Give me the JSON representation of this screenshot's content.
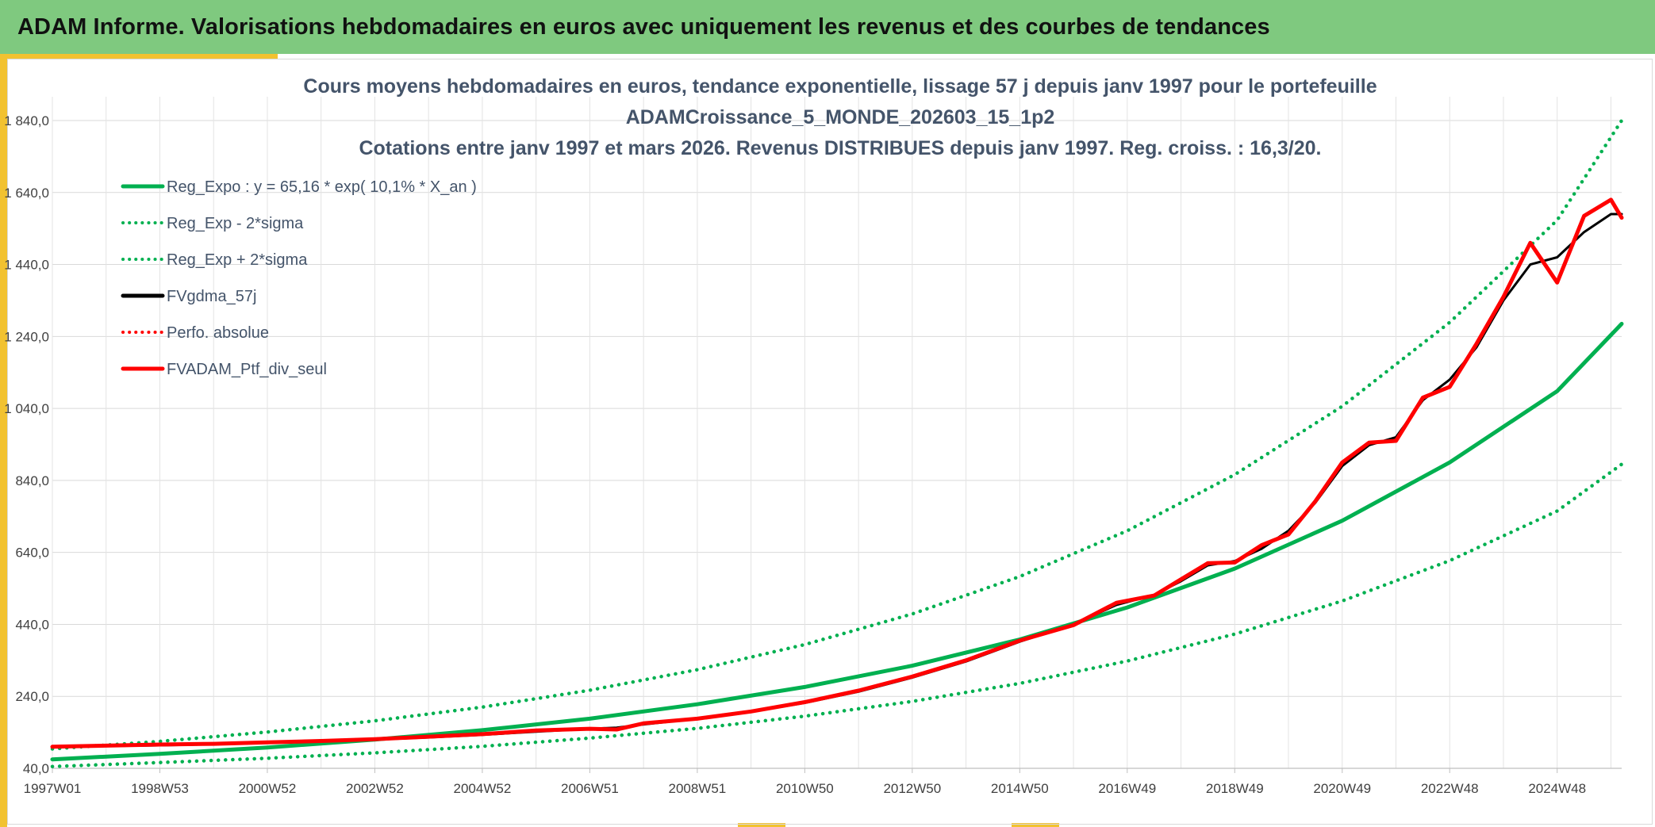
{
  "header": {
    "title": "ADAM Informe. Valorisations hebdomadaires en euros avec uniquement les revenus et des courbes de tendances"
  },
  "colors": {
    "header_bg": "#7fc97f",
    "accent": "#f2c230",
    "trend_green": "#00b050",
    "portfolio_red": "#ff0000",
    "smooth_black": "#000000"
  },
  "chart_data": {
    "type": "line",
    "title_lines": [
      "Cours moyens hebdomadaires en euros, tendance exponentielle, lissage 57 j depuis janv 1997 pour le portefeuille",
      "ADAMCroissance_5_MONDE_202603_15_1p2",
      "Cotations entre janv 1997 et mars 2026. Revenus DISTRIBUES depuis janv 1997. Reg. croiss. : 16,3/20."
    ],
    "x_range": [
      "1997W01",
      "2026W12"
    ],
    "ylim": [
      40,
      1840
    ],
    "y_ticks": [
      "40,0",
      "240,0",
      "440,0",
      "640,0",
      "840,0",
      "1 040,0",
      "1 240,0",
      "1 440,0",
      "1 640,0",
      "1 840,0"
    ],
    "x_ticks": [
      "1997W01",
      "1998W53",
      "2000W52",
      "2002W52",
      "2004W52",
      "2006W51",
      "2008W51",
      "2010W50",
      "2012W50",
      "2014W50",
      "2016W49",
      "2018W49",
      "2020W49",
      "2022W48",
      "2024W48"
    ],
    "grid": true,
    "legend_position": "top-left",
    "legend": [
      {
        "label": "Reg_Expo : y = 65,16 * exp( 10,1% *  X_an )",
        "color": "#00b050",
        "style": "solid"
      },
      {
        "label": "Reg_Exp - 2*sigma",
        "color": "#00b050",
        "style": "dotted"
      },
      {
        "label": "Reg_Exp + 2*sigma",
        "color": "#00b050",
        "style": "dotted"
      },
      {
        "label": "FVgdma_57j",
        "color": "#000000",
        "style": "solid"
      },
      {
        "label": "Perfo. absolue",
        "color": "#ff0000",
        "style": "dotted"
      },
      {
        "label": "FVADAM_Ptf_div_seul",
        "color": "#ff0000",
        "style": "solid"
      }
    ],
    "series": [
      {
        "name": "Reg_Expo : y = 65,16 * exp( 10,1% *  X_an )",
        "x": [
          1997.0,
          1999.0,
          2001.0,
          2003.0,
          2005.0,
          2007.0,
          2009.0,
          2011.0,
          2013.0,
          2015.0,
          2017.0,
          2019.0,
          2021.0,
          2023.0,
          2025.0,
          2026.2
        ],
        "y": [
          65,
          80,
          98,
          120,
          146,
          178,
          218,
          266,
          325,
          398,
          487,
          595,
          728,
          890,
          1088,
          1275
        ]
      },
      {
        "name": "Reg_Exp - 2*sigma",
        "x": [
          1997.0,
          1999.0,
          2001.0,
          2003.0,
          2005.0,
          2007.0,
          2009.0,
          2011.0,
          2013.0,
          2015.0,
          2017.0,
          2019.0,
          2021.0,
          2023.0,
          2025.0,
          2026.2
        ],
        "y": [
          45,
          56,
          68,
          83,
          101,
          124,
          151,
          185,
          226,
          276,
          338,
          413,
          505,
          617,
          755,
          885
        ]
      },
      {
        "name": "Reg_Exp + 2*sigma",
        "x": [
          1997.0,
          1999.0,
          2001.0,
          2003.0,
          2005.0,
          2007.0,
          2009.0,
          2011.0,
          2013.0,
          2015.0,
          2017.0,
          2019.0,
          2021.0,
          2023.0,
          2025.0,
          2026.2
        ],
        "y": [
          94,
          115,
          141,
          172,
          210,
          257,
          314,
          384,
          469,
          573,
          700,
          856,
          1046,
          1279,
          1563,
          1840
        ]
      },
      {
        "name": "FVgdma_57j",
        "x": [
          1997.0,
          1998.0,
          1999.0,
          2000.0,
          2001.0,
          2002.0,
          2003.0,
          2004.0,
          2005.0,
          2006.0,
          2007.0,
          2007.5,
          2008.0,
          2009.0,
          2010.0,
          2011.0,
          2012.0,
          2013.0,
          2014.0,
          2015.0,
          2016.0,
          2016.8,
          2017.5,
          2018.0,
          2018.5,
          2019.0,
          2019.5,
          2020.0,
          2020.5,
          2021.0,
          2021.5,
          2022.0,
          2022.5,
          2023.0,
          2023.5,
          2024.0,
          2024.5,
          2025.0,
          2025.5,
          2026.0,
          2026.2
        ],
        "y": [
          100,
          102,
          104,
          107,
          111,
          116,
          120,
          126,
          133,
          142,
          150,
          153,
          162,
          178,
          197,
          222,
          253,
          292,
          337,
          392,
          440,
          494,
          522,
          560,
          604,
          616,
          650,
          700,
          778,
          880,
          938,
          960,
          1063,
          1120,
          1210,
          1340,
          1440,
          1460,
          1530,
          1580,
          1580
        ]
      },
      {
        "name": "FVADAM_Ptf_div_seul",
        "x": [
          1997.0,
          1998.0,
          1999.0,
          2000.0,
          2001.0,
          2002.0,
          2003.0,
          2004.0,
          2005.0,
          2006.0,
          2007.0,
          2007.5,
          2008.0,
          2009.0,
          2010.0,
          2011.0,
          2012.0,
          2013.0,
          2014.0,
          2015.0,
          2016.0,
          2016.8,
          2017.5,
          2018.0,
          2018.5,
          2019.0,
          2019.5,
          2020.0,
          2020.5,
          2021.0,
          2021.5,
          2022.0,
          2022.5,
          2023.0,
          2023.5,
          2024.0,
          2024.5,
          2025.0,
          2025.5,
          2026.0,
          2026.2
        ],
        "y": [
          100,
          103,
          106,
          108,
          112,
          116,
          121,
          128,
          135,
          145,
          150,
          148,
          165,
          178,
          198,
          224,
          256,
          295,
          340,
          395,
          438,
          500,
          520,
          565,
          610,
          612,
          660,
          690,
          782,
          890,
          945,
          950,
          1070,
          1100,
          1220,
          1350,
          1500,
          1390,
          1575,
          1620,
          1570
        ]
      },
      {
        "name": "Perfo. absolue",
        "x": [
          1997.0,
          1998.0,
          1999.0,
          2000.0,
          2001.0,
          2002.0,
          2003.0,
          2004.0,
          2005.0,
          2006.0,
          2007.0,
          2007.5,
          2008.0,
          2009.0,
          2010.0,
          2011.0,
          2012.0,
          2013.0,
          2014.0,
          2015.0,
          2016.0,
          2016.8,
          2017.5,
          2018.0,
          2018.5,
          2019.0,
          2019.5,
          2020.0,
          2020.5,
          2021.0,
          2021.5,
          2022.0,
          2022.5,
          2023.0,
          2023.5,
          2024.0,
          2024.5,
          2025.0,
          2025.5,
          2026.0,
          2026.2
        ],
        "y": [
          100,
          103,
          106,
          108,
          112,
          116,
          121,
          128,
          135,
          145,
          150,
          148,
          165,
          178,
          198,
          224,
          256,
          295,
          340,
          395,
          438,
          500,
          520,
          565,
          610,
          612,
          660,
          690,
          782,
          890,
          945,
          950,
          1070,
          1100,
          1220,
          1350,
          1500,
          1390,
          1575,
          1620,
          1570
        ]
      }
    ]
  }
}
